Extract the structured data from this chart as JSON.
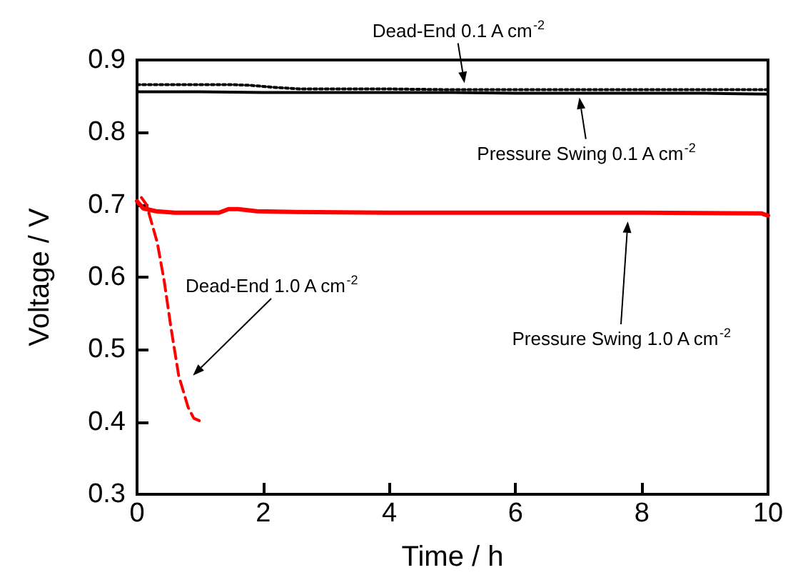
{
  "chart_data": {
    "type": "line",
    "xlabel": "Time / h",
    "ylabel": "Voltage / V",
    "xlim": [
      0,
      10
    ],
    "xticks": [
      0,
      2,
      4,
      6,
      8,
      10
    ],
    "ylim": [
      0.3,
      0.9
    ],
    "yticks": [
      0.3,
      0.4,
      0.5,
      0.6,
      0.7,
      0.8,
      0.9
    ],
    "grid": false,
    "marker": "none",
    "series": [
      {
        "color": "#000000",
        "line_style": "dotted",
        "x": [
          0,
          0.5,
          1,
          1.5,
          1.8,
          2.2,
          2.6,
          3,
          4,
          5,
          6,
          7,
          8,
          9,
          10
        ],
        "values": [
          0.866,
          0.866,
          0.866,
          0.866,
          0.865,
          0.862,
          0.86,
          0.86,
          0.86,
          0.859,
          0.859,
          0.859,
          0.859,
          0.859,
          0.859
        ]
      },
      {
        "color": "#000000",
        "line_style": "solid",
        "x": [
          0,
          1,
          2,
          3,
          4,
          5,
          6,
          7,
          8,
          9,
          10
        ],
        "values": [
          0.856,
          0.856,
          0.855,
          0.855,
          0.855,
          0.855,
          0.854,
          0.854,
          0.854,
          0.854,
          0.853
        ]
      },
      {
        "color": "#ff0000",
        "line_style": "solid",
        "x": [
          0,
          0.1,
          0.3,
          0.6,
          1,
          1.3,
          1.45,
          1.6,
          1.9,
          2.5,
          4,
          6,
          8,
          9.9,
          10
        ],
        "values": [
          0.705,
          0.695,
          0.691,
          0.689,
          0.689,
          0.689,
          0.694,
          0.694,
          0.691,
          0.69,
          0.689,
          0.689,
          0.689,
          0.688,
          0.685
        ]
      },
      {
        "color": "#ff0000",
        "line_style": "dashed",
        "x": [
          0.07,
          0.15,
          0.32,
          0.43,
          0.54,
          0.66,
          0.81,
          0.9,
          1.03
        ],
        "values": [
          0.71,
          0.7,
          0.648,
          0.595,
          0.529,
          0.464,
          0.42,
          0.405,
          0.4
        ]
      }
    ],
    "annotations": [
      {
        "text": "Dead-End 0.1 A cm$^{-2}$",
        "x": 5.2,
        "y": 0.862
      },
      {
        "text": "Pressure Swing 0.1 A cm$^{-2}$",
        "x": 7.0,
        "y": 0.854
      },
      "Pressure Swing 1.0 A cm$^{-2}$",
      "Dead-End 1.0 A cm$^{-2}$"
    ]
  }
}
